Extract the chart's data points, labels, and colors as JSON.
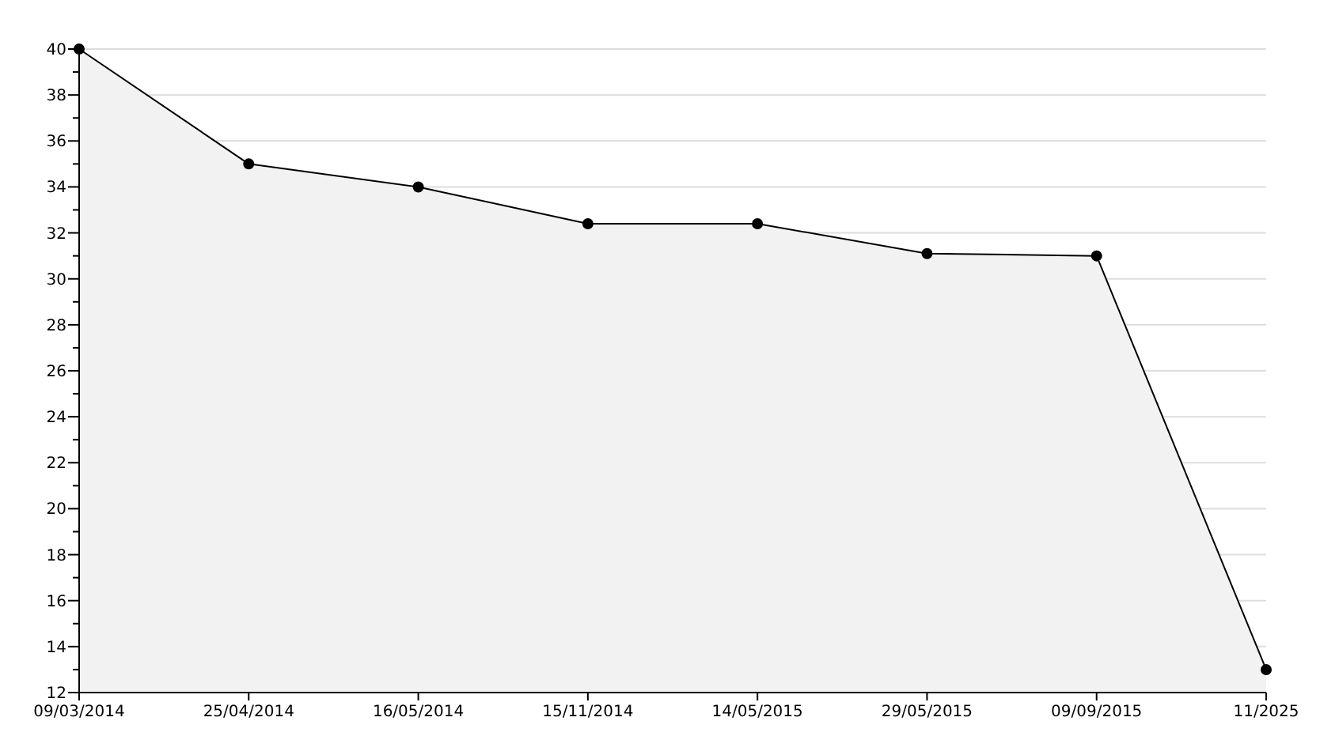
{
  "chart_data": {
    "type": "area",
    "categories": [
      "09/03/2014",
      "25/04/2014",
      "16/05/2014",
      "15/11/2014",
      "14/05/2015",
      "29/05/2015",
      "09/09/2015",
      "11/2025"
    ],
    "series": [
      {
        "color": "#000000",
        "values": [
          40,
          35,
          34,
          32.4,
          32.4,
          31.1,
          31,
          13
        ]
      }
    ],
    "ylim": [
      12,
      40
    ],
    "yticks": [
      12,
      {
        "value": 13,
        "label": null
      },
      14,
      {
        "value": 15,
        "label": null
      },
      16,
      {
        "value": 17,
        "label": null
      },
      18,
      {
        "value": 19,
        "label": null
      },
      20,
      {
        "value": 21,
        "label": null
      },
      22,
      {
        "value": 23,
        "label": null
      },
      24,
      {
        "value": 25,
        "label": null
      },
      26,
      {
        "value": 27,
        "label": null
      },
      28,
      {
        "value": 29,
        "label": null
      },
      30,
      {
        "value": 31,
        "label": null
      },
      32,
      {
        "value": 33,
        "label": null
      },
      34,
      {
        "value": 35,
        "label": null
      },
      36,
      {
        "value": 37,
        "label": null
      },
      38,
      {
        "value": 39,
        "label": null
      },
      40
    ],
    "grid": "y",
    "marker": "circle",
    "line_style": "solid"
  }
}
